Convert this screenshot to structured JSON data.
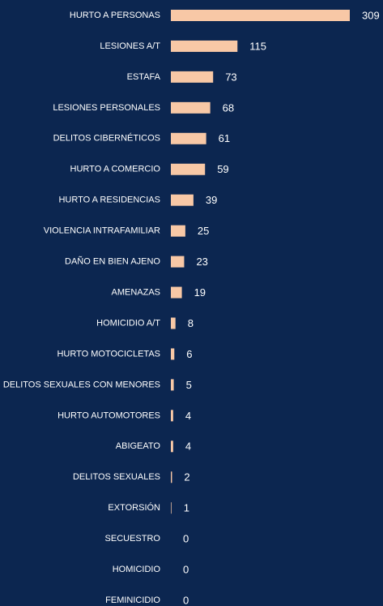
{
  "chart_data": {
    "type": "bar",
    "orientation": "horizontal",
    "color": "#f8c8a6",
    "categories": [
      "HURTO A PERSONAS",
      "LESIONES A/T",
      "ESTAFA",
      "LESIONES PERSONALES",
      "DELITOS CIBERNÉTICOS",
      "HURTO A COMERCIO",
      "HURTO A RESIDENCIAS",
      "VIOLENCIA INTRAFAMILIAR",
      "DAÑO EN BIEN AJENO",
      "AMENAZAS",
      "HOMICIDIO A/T",
      "HURTO MOTOCICLETAS",
      "DELITOS SEXUALES CON MENORES",
      "HURTO AUTOMOTORES",
      "ABIGEATO",
      "DELITOS SEXUALES",
      "EXTORSIÓN",
      "SECUESTRO",
      "HOMICIDIO",
      "FEMINICIDIO"
    ],
    "values": [
      309,
      115,
      73,
      68,
      61,
      59,
      39,
      25,
      23,
      19,
      8,
      6,
      5,
      4,
      4,
      2,
      1,
      0,
      0,
      0
    ]
  }
}
